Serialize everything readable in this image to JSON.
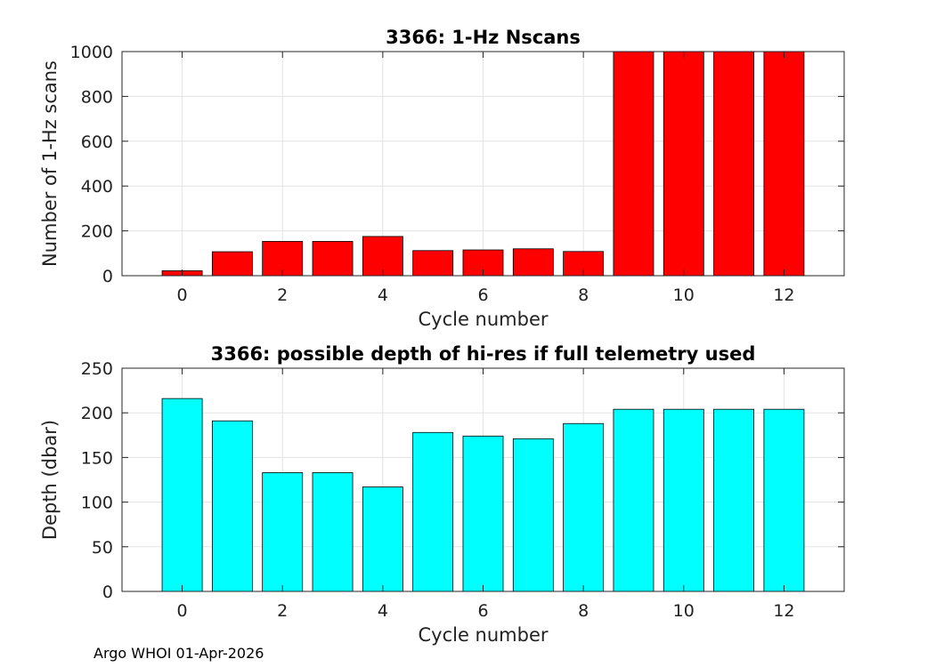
{
  "footer": "Argo WHOI 01-Apr-2026",
  "chart_data": [
    {
      "type": "bar",
      "title": "3366: 1-Hz Nscans",
      "xlabel": "Cycle number",
      "ylabel": "Number of 1-Hz scans",
      "x": [
        0,
        1,
        2,
        3,
        4,
        5,
        6,
        7,
        8,
        9,
        10,
        11,
        12
      ],
      "values": [
        22,
        107,
        153,
        153,
        175,
        112,
        115,
        120,
        108,
        1000,
        1000,
        1000,
        1000
      ],
      "xlim": [
        -1.2,
        13.2
      ],
      "ylim": [
        0,
        1000
      ],
      "xticks": [
        0,
        2,
        4,
        6,
        8,
        10,
        12
      ],
      "yticks": [
        0,
        200,
        400,
        600,
        800,
        1000
      ],
      "bar_color": "#ff0000",
      "grid": true
    },
    {
      "type": "bar",
      "title": "3366: possible depth of hi-res if full telemetry used",
      "xlabel": "Cycle number",
      "ylabel": "Depth (dbar)",
      "x": [
        0,
        1,
        2,
        3,
        4,
        5,
        6,
        7,
        8,
        9,
        10,
        11,
        12
      ],
      "values": [
        216,
        191,
        133,
        133,
        117,
        178,
        174,
        171,
        188,
        204,
        204,
        204,
        204
      ],
      "xlim": [
        -1.2,
        13.2
      ],
      "ylim": [
        0,
        250
      ],
      "xticks": [
        0,
        2,
        4,
        6,
        8,
        10,
        12
      ],
      "yticks": [
        0,
        50,
        100,
        150,
        200,
        250
      ],
      "bar_color": "#00ffff",
      "grid": true
    }
  ]
}
